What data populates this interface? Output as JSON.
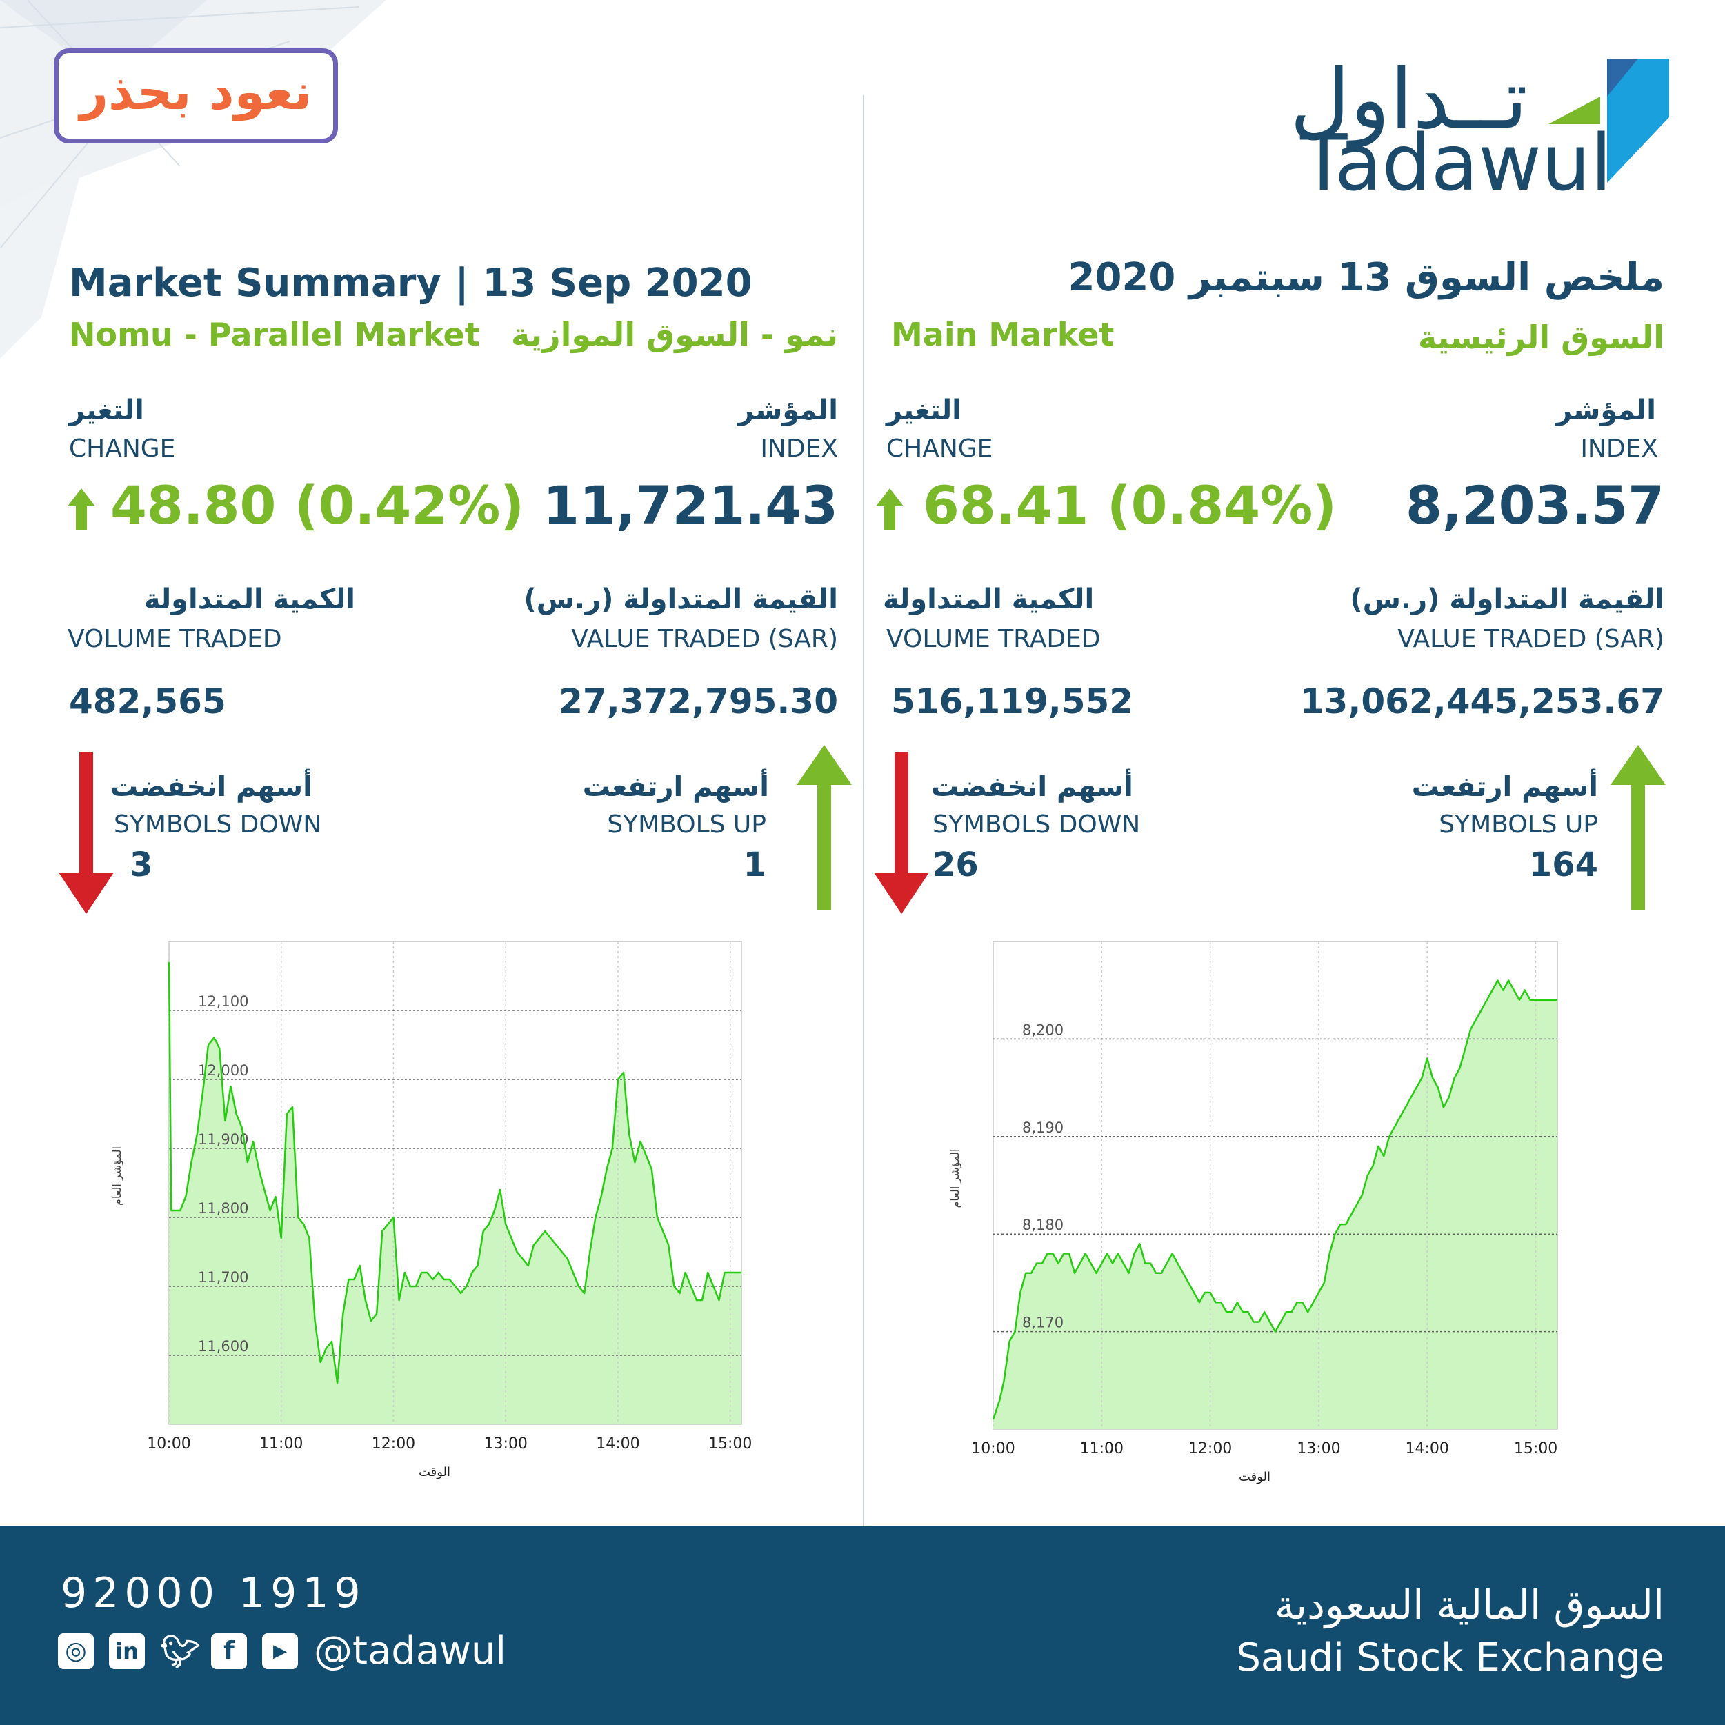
{
  "badge": "نعود بحذر",
  "logo": {
    "arabic": "تــداول",
    "english": "Tadawul"
  },
  "colors": {
    "navy": "#1b4a6b",
    "green": "#7ab92a",
    "red": "#d42027",
    "footer": "#124d70",
    "fill": "#ccf5c2",
    "line": "#26cc0f"
  },
  "left": {
    "title": "Market Summary | 13 Sep 2020",
    "market_en": "Nomu - Parallel Market",
    "market_ar": "نمو - السوق الموازية",
    "change_ar": "التغير",
    "change_en": "CHANGE",
    "change_value": "48.80 (0.42%)",
    "index_ar": "المؤشر",
    "index_en": "INDEX",
    "index_value": "11,721.43",
    "volume_ar": "الكمية المتداولة",
    "volume_en": "VOLUME TRADED",
    "volume_value": "482,565",
    "valuet_ar": "القيمة المتداولة (ر.س)",
    "valuet_en": "VALUE TRADED (SAR)",
    "valuet_value": "27,372,795.30",
    "down_ar": "أسهم انخفضت",
    "down_en": "SYMBOLS DOWN",
    "down_value": "3",
    "up_ar": "أسهم ارتفعت",
    "up_en": "SYMBOLS UP",
    "up_value": "1"
  },
  "right": {
    "title": "ملخص السوق 13 سبتمبر 2020",
    "market_en": "Main Market",
    "market_ar": "السوق الرئيسية",
    "change_ar": "التغير",
    "change_en": "CHANGE",
    "change_value": "68.41 (0.84%)",
    "index_ar": "المؤشر",
    "index_en": "INDEX",
    "index_value": "8,203.57",
    "volume_ar": "الكمية المتداولة",
    "volume_en": "VOLUME TRADED",
    "volume_value": "516,119,552",
    "valuet_ar": "القيمة المتداولة (ر.س)",
    "valuet_en": "VALUE TRADED (SAR)",
    "valuet_value": "13,062,445,253.67",
    "down_ar": "أسهم انخفضت",
    "down_en": "SYMBOLS DOWN",
    "down_value": "26",
    "up_ar": "أسهم ارتفعت",
    "up_en": "SYMBOLS UP",
    "up_value": "164"
  },
  "footer": {
    "phone": "92000 1919",
    "handle": "@tadawul",
    "name_ar": "السوق المالية السعودية",
    "name_en": "Saudi Stock Exchange",
    "icons": [
      "instagram-icon",
      "linkedin-icon",
      "twitter-icon",
      "facebook-icon",
      "youtube-icon"
    ]
  },
  "chart_data": [
    {
      "type": "area",
      "market": "Nomu - Parallel Market",
      "xlabel": "الوقت",
      "ylabel": "المؤشر العام",
      "x_ticks": [
        "10:00",
        "11:00",
        "12:00",
        "13:00",
        "14:00",
        "15:00"
      ],
      "y_ticks": [
        11600,
        11700,
        11800,
        11900,
        12000,
        12100
      ],
      "ylim": [
        11500,
        12200
      ],
      "xlim": [
        10.0,
        15.1
      ],
      "grid": true,
      "x": [
        10.0,
        10.02,
        10.05,
        10.1,
        10.15,
        10.2,
        10.25,
        10.3,
        10.35,
        10.4,
        10.42,
        10.45,
        10.5,
        10.55,
        10.6,
        10.65,
        10.7,
        10.75,
        10.8,
        10.85,
        10.9,
        10.95,
        11.0,
        11.05,
        11.1,
        11.15,
        11.2,
        11.25,
        11.3,
        11.35,
        11.4,
        11.45,
        11.5,
        11.55,
        11.6,
        11.65,
        11.7,
        11.75,
        11.8,
        11.85,
        11.9,
        11.95,
        12.0,
        12.05,
        12.1,
        12.15,
        12.2,
        12.25,
        12.3,
        12.35,
        12.4,
        12.45,
        12.5,
        12.55,
        12.6,
        12.65,
        12.7,
        12.75,
        12.8,
        12.85,
        12.9,
        12.95,
        13.0,
        13.05,
        13.1,
        13.15,
        13.2,
        13.25,
        13.3,
        13.35,
        13.4,
        13.45,
        13.5,
        13.55,
        13.6,
        13.65,
        13.7,
        13.75,
        13.8,
        13.85,
        13.9,
        13.95,
        14.0,
        14.05,
        14.1,
        14.15,
        14.2,
        14.25,
        14.3,
        14.35,
        14.4,
        14.45,
        14.5,
        14.55,
        14.6,
        14.65,
        14.7,
        14.75,
        14.8,
        14.85,
        14.9,
        14.95,
        15.0,
        15.05,
        15.1
      ],
      "y": [
        12170,
        11810,
        11810,
        11810,
        11830,
        11880,
        11920,
        11980,
        12050,
        12060,
        12055,
        12045,
        11940,
        11990,
        11950,
        11930,
        11880,
        11910,
        11870,
        11840,
        11810,
        11830,
        11770,
        11950,
        11960,
        11800,
        11790,
        11770,
        11650,
        11590,
        11610,
        11620,
        11560,
        11660,
        11710,
        11710,
        11730,
        11680,
        11650,
        11660,
        11780,
        11790,
        11800,
        11680,
        11720,
        11700,
        11700,
        11720,
        11720,
        11710,
        11720,
        11710,
        11710,
        11700,
        11690,
        11700,
        11720,
        11730,
        11780,
        11790,
        11810,
        11840,
        11790,
        11770,
        11750,
        11740,
        11730,
        11760,
        11770,
        11780,
        11770,
        11760,
        11750,
        11740,
        11720,
        11700,
        11690,
        11750,
        11800,
        11830,
        11870,
        11900,
        12000,
        12010,
        11920,
        11880,
        11910,
        11890,
        11870,
        11800,
        11780,
        11760,
        11700,
        11690,
        11720,
        11700,
        11680,
        11680,
        11720,
        11700,
        11680,
        11720,
        11720,
        11720,
        11720
      ]
    },
    {
      "type": "area",
      "market": "Main Market",
      "xlabel": "الوقت",
      "ylabel": "المؤشر العام",
      "x_ticks": [
        "10:00",
        "11:00",
        "12:00",
        "13:00",
        "14:00",
        "15:00"
      ],
      "y_ticks": [
        8170,
        8180,
        8190,
        8200
      ],
      "ylim": [
        8160,
        8210
      ],
      "xlim": [
        10.0,
        15.2
      ],
      "grid": true,
      "x": [
        10.0,
        10.03,
        10.06,
        10.1,
        10.15,
        10.2,
        10.25,
        10.3,
        10.35,
        10.4,
        10.45,
        10.5,
        10.55,
        10.6,
        10.65,
        10.7,
        10.75,
        10.8,
        10.85,
        10.9,
        10.95,
        11.0,
        11.05,
        11.1,
        11.15,
        11.2,
        11.25,
        11.3,
        11.35,
        11.4,
        11.45,
        11.5,
        11.55,
        11.6,
        11.65,
        11.7,
        11.75,
        11.8,
        11.85,
        11.9,
        11.95,
        12.0,
        12.05,
        12.1,
        12.15,
        12.2,
        12.25,
        12.3,
        12.35,
        12.4,
        12.45,
        12.5,
        12.55,
        12.6,
        12.65,
        12.7,
        12.75,
        12.8,
        12.85,
        12.9,
        12.95,
        13.0,
        13.05,
        13.1,
        13.15,
        13.2,
        13.25,
        13.3,
        13.35,
        13.4,
        13.45,
        13.5,
        13.55,
        13.6,
        13.65,
        13.7,
        13.75,
        13.8,
        13.85,
        13.9,
        13.95,
        14.0,
        14.05,
        14.1,
        14.15,
        14.2,
        14.25,
        14.3,
        14.35,
        14.4,
        14.45,
        14.5,
        14.55,
        14.6,
        14.65,
        14.7,
        14.75,
        14.8,
        14.85,
        14.9,
        14.95,
        15.0,
        15.05,
        15.1,
        15.2
      ],
      "y": [
        8161,
        8162,
        8163,
        8165,
        8169,
        8170,
        8174,
        8176,
        8176,
        8177,
        8177,
        8178,
        8178,
        8177,
        8178,
        8178,
        8176,
        8177,
        8178,
        8177,
        8176,
        8177,
        8178,
        8177,
        8178,
        8177,
        8176,
        8178,
        8179,
        8177,
        8177,
        8176,
        8176,
        8177,
        8178,
        8177,
        8176,
        8175,
        8174,
        8173,
        8174,
        8174,
        8173,
        8173,
        8172,
        8172,
        8173,
        8172,
        8172,
        8171,
        8171,
        8172,
        8171,
        8170,
        8171,
        8172,
        8172,
        8173,
        8173,
        8172,
        8173,
        8174,
        8175,
        8178,
        8180,
        8181,
        8181,
        8182,
        8183,
        8184,
        8186,
        8187,
        8189,
        8188,
        8190,
        8191,
        8192,
        8193,
        8194,
        8195,
        8196,
        8198,
        8196,
        8195,
        8193,
        8194,
        8196,
        8197,
        8199,
        8201,
        8202,
        8203,
        8204,
        8205,
        8206,
        8205,
        8206,
        8205,
        8204,
        8205,
        8204,
        8204,
        8204,
        8204,
        8204
      ]
    }
  ]
}
